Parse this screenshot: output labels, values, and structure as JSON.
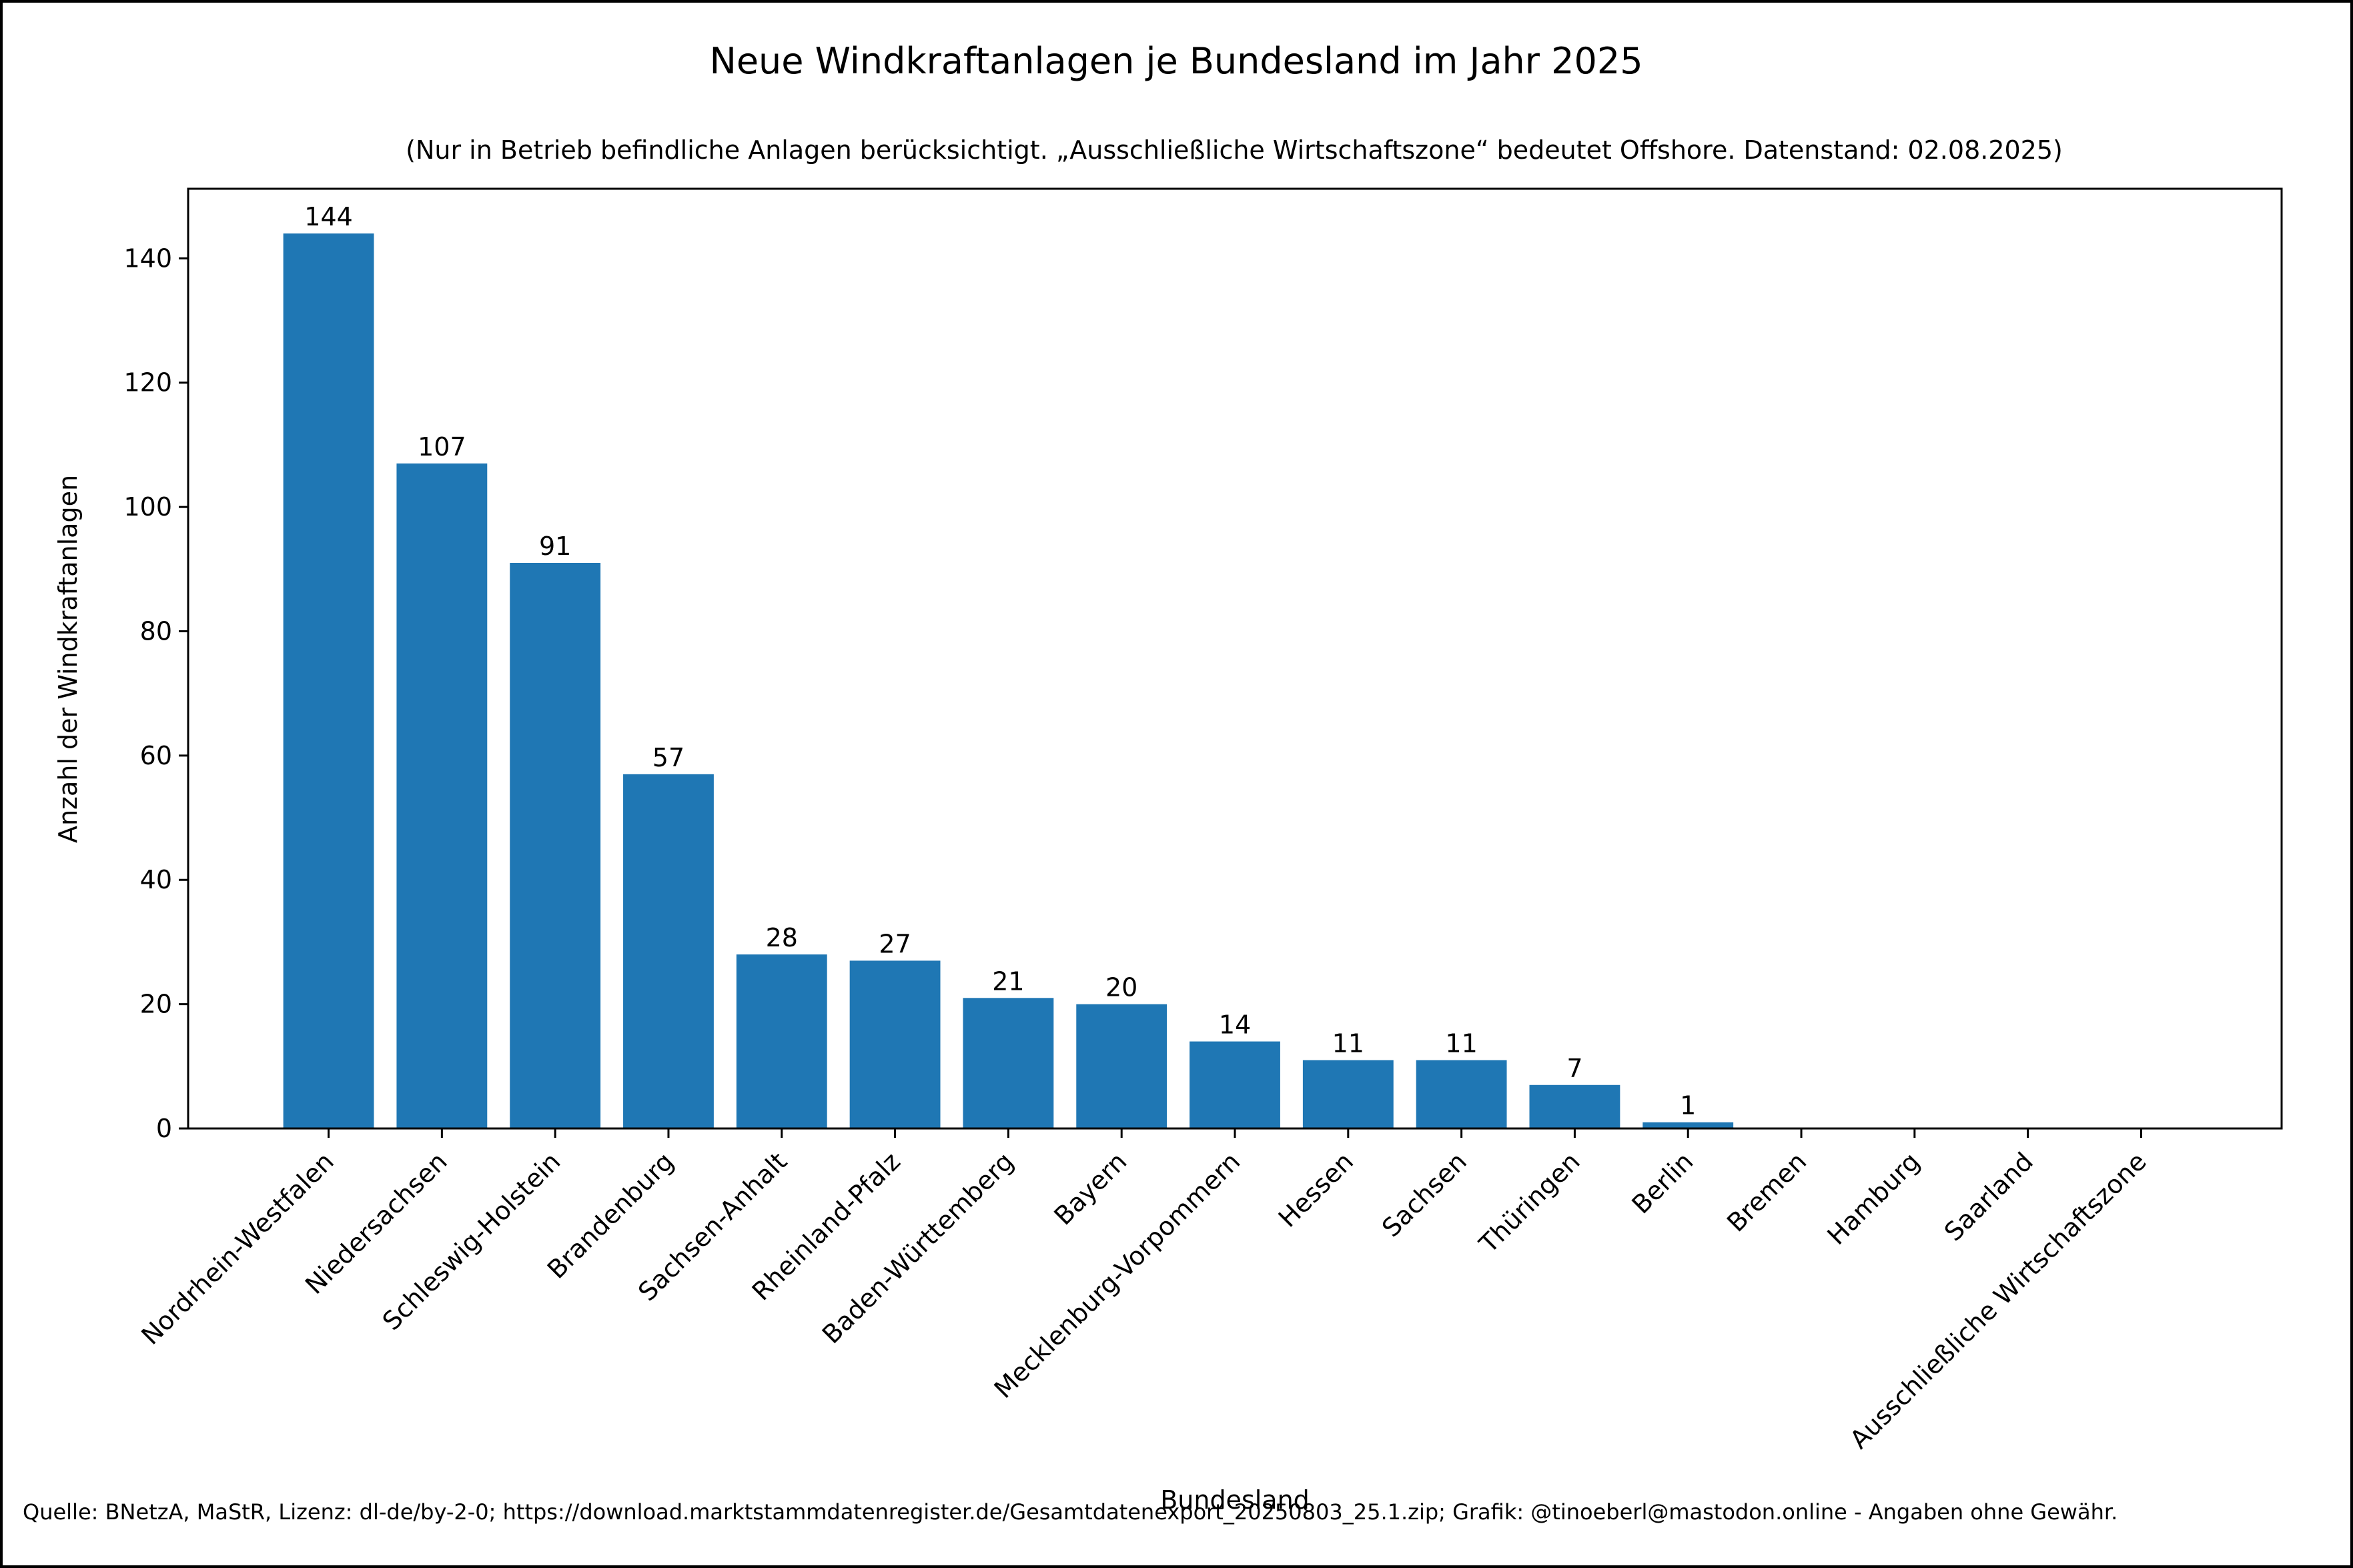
{
  "chart_data": {
    "type": "bar",
    "title": "Neue Windkraftanlagen je Bundesland im Jahr 2025",
    "subtitle": "(Nur in Betrieb befindliche Anlagen berücksichtigt. „Ausschließliche Wirtschaftszone“ bedeutet Offshore. Datenstand: 02.08.2025)",
    "xlabel": "Bundesland",
    "ylabel": "Anzahl der Windkraftanlagen",
    "footer": "Quelle: BNetzA, MaStR, Lizenz: dl-de/by-2-0; https://download.marktstammdatenregister.de/Gesamtdatenexport_20250803_25.1.zip; Grafik: @tinoeberl@mastodon.online - Angaben ohne Gewähr.",
    "categories": [
      "Nordrhein-Westfalen",
      "Niedersachsen",
      "Schleswig-Holstein",
      "Brandenburg",
      "Sachsen-Anhalt",
      "Rheinland-Pfalz",
      "Baden-Württemberg",
      "Bayern",
      "Mecklenburg-Vorpommern",
      "Hessen",
      "Sachsen",
      "Thüringen",
      "Berlin",
      "Bremen",
      "Hamburg",
      "Saarland",
      "Ausschließliche Wirtschaftszone"
    ],
    "values": [
      144,
      107,
      91,
      57,
      28,
      27,
      21,
      20,
      14,
      11,
      11,
      7,
      1,
      0,
      0,
      0,
      0
    ],
    "data_labels": [
      "144",
      "107",
      "91",
      "57",
      "28",
      "27",
      "21",
      "20",
      "14",
      "11",
      "11",
      "7",
      "1",
      "",
      "",
      "",
      ""
    ],
    "ylim": [
      0,
      151.2
    ],
    "yticks": [
      0,
      20,
      40,
      60,
      80,
      100,
      120,
      140
    ],
    "grid": false,
    "legend": "none",
    "colors": {
      "bar": "#1f77b4",
      "axes": "#000000",
      "frame": "#000000",
      "background": "#ffffff"
    }
  }
}
